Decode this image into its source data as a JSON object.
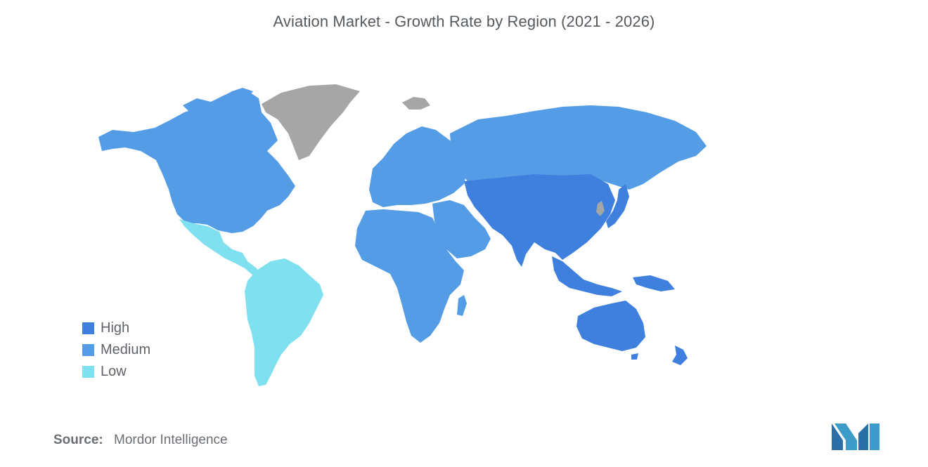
{
  "title": "Aviation Market - Growth Rate by Region (2021 - 2026)",
  "legend": {
    "items": [
      {
        "label": "High",
        "color": "#3f80de"
      },
      {
        "label": "Medium",
        "color": "#549de6"
      },
      {
        "label": "Low",
        "color": "#7fe0f0"
      }
    ]
  },
  "regions": {
    "north_america": "Medium",
    "mexico_central_america": "Low",
    "south_america": "Low",
    "europe": "Medium",
    "russia": "Medium",
    "middle_east": "Medium",
    "africa": "Medium",
    "asia_pacific": "High",
    "oceania": "High",
    "greenland": "No data"
  },
  "colors": {
    "no_data": "#a6a6a6",
    "logo_primary": "#3b9cc9",
    "logo_secondary": "#2a6fa8"
  },
  "source": {
    "label": "Source:",
    "value": "Mordor Intelligence"
  }
}
